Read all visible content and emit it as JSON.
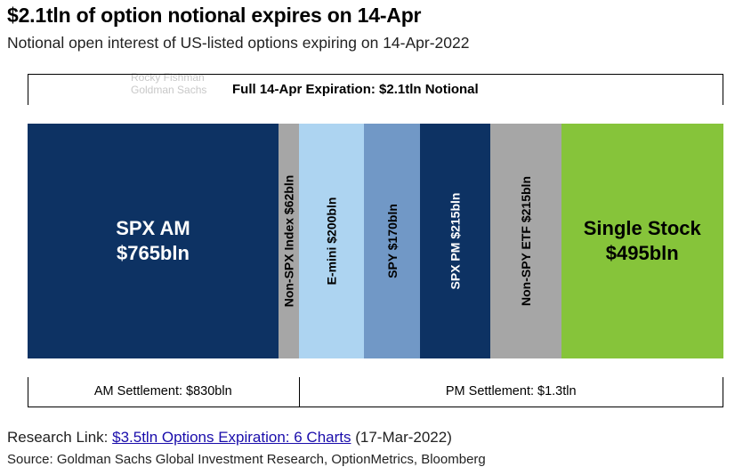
{
  "header": {
    "title": "$2.1tln of option notional expires on 14-Apr",
    "subtitle": "Notional open interest of US-listed options expiring on 14-Apr-2022"
  },
  "watermark": {
    "line1": "Rocky Fishman",
    "line2": "Goldman Sachs"
  },
  "chart_data": {
    "type": "bar",
    "title": "Full 14-Apr Expiration: $2.1tln Notional",
    "orientation": "horizontal-stacked",
    "unit": "bln",
    "categories": [
      "SPX AM",
      "Non-SPX Index",
      "E-mini",
      "SPY",
      "SPX PM",
      "Non-SPY ETF",
      "Single Stock"
    ],
    "values": [
      765,
      62,
      200,
      170,
      215,
      215,
      495
    ],
    "labels": [
      "SPX AM\n$765bln",
      "Non-SPX Index $62bln",
      "E-mini $200bln",
      "SPY $170bln",
      "SPX PM $215bln",
      "Non-SPY ETF $215bln",
      "Single Stock\n$495bln"
    ],
    "colors": [
      "#0d3263",
      "#a6a6a6",
      "#add4f1",
      "#7198c6",
      "#0d3263",
      "#a6a6a6",
      "#86c43a"
    ],
    "text_colors": [
      "#ffffff",
      "#000000",
      "#000000",
      "#000000",
      "#ffffff",
      "#000000",
      "#000000"
    ],
    "groups": [
      {
        "label": "AM Settlement: $830bln",
        "segments": [
          0,
          1
        ]
      },
      {
        "label": "PM Settlement: $1.3tln",
        "segments": [
          2,
          3,
          4,
          5,
          6
        ]
      }
    ]
  },
  "footer": {
    "research_prefix": "Research Link: ",
    "research_link": "$3.5tln Options Expiration: 6 Charts",
    "research_date": " (17-Mar-2022)",
    "source": "Source: Goldman Sachs Global Investment Research, OptionMetrics, Bloomberg"
  }
}
